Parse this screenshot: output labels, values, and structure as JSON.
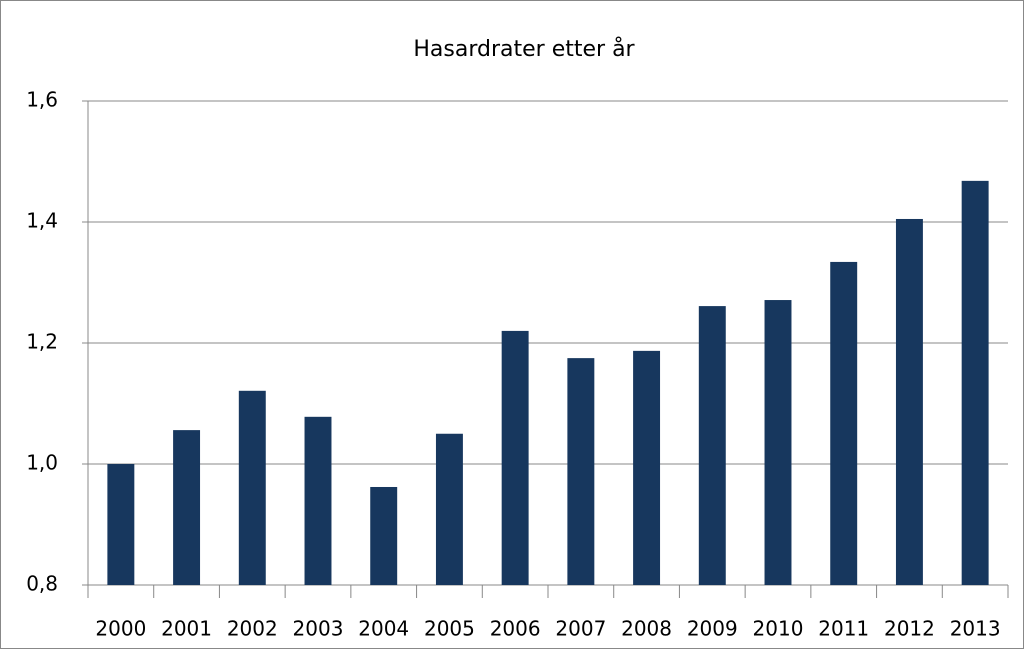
{
  "chart_data": {
    "type": "bar",
    "title": "Hasardrater etter år",
    "categories": [
      "2000",
      "2001",
      "2002",
      "2003",
      "2004",
      "2005",
      "2006",
      "2007",
      "2008",
      "2009",
      "2010",
      "2011",
      "2012",
      "2013"
    ],
    "values": [
      1.0,
      1.056,
      1.121,
      1.078,
      0.962,
      1.05,
      1.22,
      1.175,
      1.187,
      1.261,
      1.271,
      1.334,
      1.405,
      1.468
    ],
    "color": "#17375e",
    "ylim": [
      0.8,
      1.6
    ],
    "yticks": [
      {
        "value": 0.8,
        "label": "0,8"
      },
      {
        "value": 1.0,
        "label": "1,0"
      },
      {
        "value": 1.2,
        "label": "1,2"
      },
      {
        "value": 1.4,
        "label": "1,4"
      },
      {
        "value": 1.6,
        "label": "1,6"
      }
    ],
    "grid": true
  }
}
